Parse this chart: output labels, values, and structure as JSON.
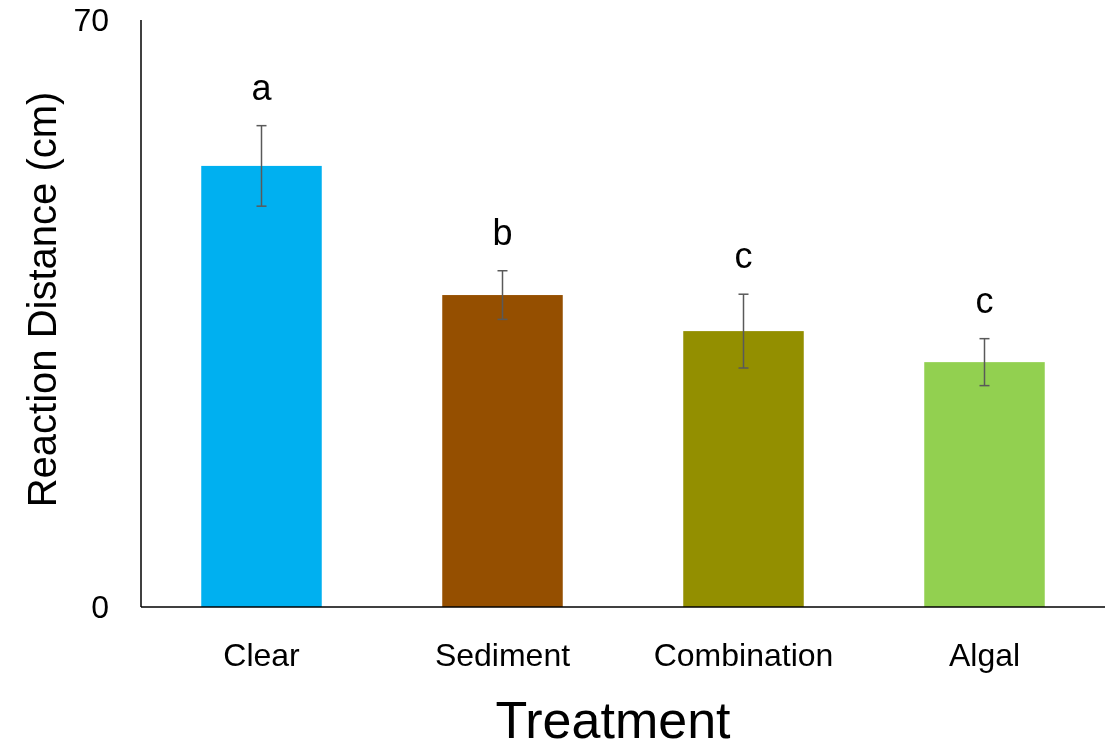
{
  "chart_data": {
    "type": "bar",
    "xlabel": "Treatment",
    "ylabel": "Reaction Distance (cm)",
    "categories": [
      "Clear",
      "Sediment",
      "Combination",
      "Algal"
    ],
    "values": [
      52.6,
      37.2,
      32.9,
      29.2
    ],
    "colors": [
      "#00b0f0",
      "#954f00",
      "#938f00",
      "#92d050"
    ],
    "errors": [
      4.8,
      2.9,
      4.4,
      2.8
    ],
    "ylim": [
      0,
      70
    ],
    "yticks": [
      0,
      70
    ],
    "grid": false,
    "annotations": [
      "a",
      "b",
      "c",
      "c"
    ]
  }
}
